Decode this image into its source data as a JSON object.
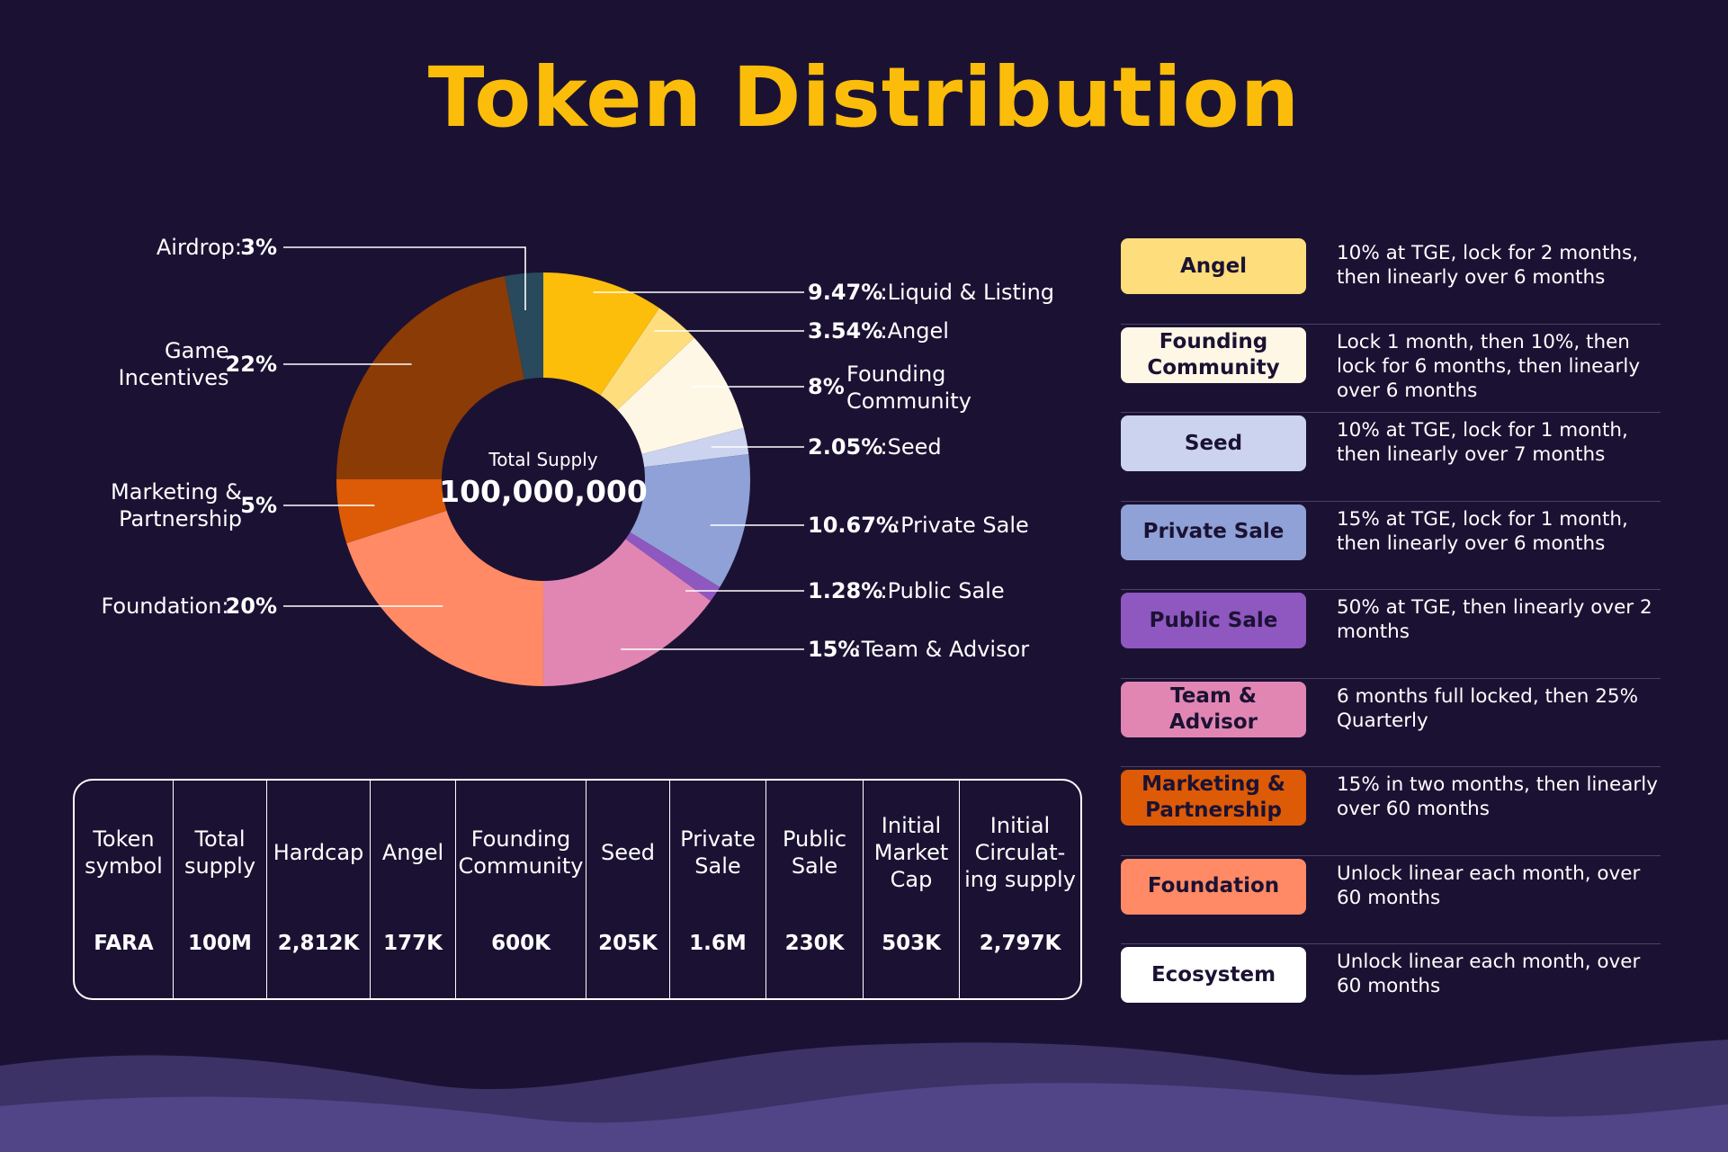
{
  "title": "Token Distribution",
  "colors": {
    "background": "#1b1233",
    "title": "#fbbd09",
    "hills": "#4a3d78"
  },
  "chart_data": {
    "type": "pie",
    "variant": "donut",
    "center_label": "Total Supply",
    "center_value": "100,000,000",
    "slices": [
      {
        "name": "Liquid & Listing",
        "pct": "9.47%",
        "value": 9.47,
        "color": "#fcbd0b",
        "label_side": "right",
        "label_line1": ":Liquid & Listing",
        "label_line2": ""
      },
      {
        "name": "Angel",
        "pct": "3.54%",
        "value": 3.54,
        "color": "#fddd7c",
        "label_side": "right",
        "label_line1": ":Angel",
        "label_line2": ""
      },
      {
        "name": "Founding Community",
        "pct": "8%",
        "value": 8,
        "color": "#fff7e5",
        "label_side": "right",
        "label_line1": "Founding",
        "label_line2": "Community"
      },
      {
        "name": "Seed",
        "pct": "2.05%",
        "value": 2.05,
        "color": "#cbd3ee",
        "label_side": "right",
        "label_line1": ":Seed",
        "label_line2": ""
      },
      {
        "name": "Private Sale",
        "pct": "10.67%",
        "value": 10.67,
        "color": "#8fa1d6",
        "label_side": "right",
        "label_line1": ":Private Sale",
        "label_line2": ""
      },
      {
        "name": "Public Sale",
        "pct": "1.28%",
        "value": 1.28,
        "color": "#8f57c0",
        "label_side": "right",
        "label_line1": ":Public Sale",
        "label_line2": ""
      },
      {
        "name": "Team & Advisor",
        "pct": "15%",
        "value": 15,
        "color": "#e186b3",
        "label_side": "right",
        "label_line1": ":Team & Advisor",
        "label_line2": ""
      },
      {
        "name": "Foundation",
        "pct": "20%",
        "value": 20,
        "color": "#ff8a65",
        "label_side": "left",
        "label_line1": "Foundation:",
        "label_line2": ""
      },
      {
        "name": "Marketing & Partnership",
        "pct": "5%",
        "value": 5,
        "color": "#dd5a07",
        "label_side": "left",
        "label_line1": "Marketing &",
        "label_line2": "Partnership"
      },
      {
        "name": "Game Incentives",
        "pct": "22%",
        "value": 22,
        "color": "#8b3b05",
        "label_side": "left",
        "label_line1": "Game",
        "label_line2": "Incentives"
      },
      {
        "name": "Airdrop",
        "pct": "3%",
        "value": 3,
        "color": "#29495c",
        "label_side": "left",
        "label_line1": "Airdrop:",
        "label_line2": ""
      }
    ]
  },
  "summary_table": {
    "columns": [
      {
        "header": "Token\nsymbol",
        "value": "FARA"
      },
      {
        "header": "Total\nsupply",
        "value": "100M"
      },
      {
        "header": "Hardcap",
        "value": "2,812K"
      },
      {
        "header": "Angel",
        "value": "177K"
      },
      {
        "header": "Founding\nCommunity",
        "value": "600K"
      },
      {
        "header": "Seed",
        "value": "205K"
      },
      {
        "header": "Private\nSale",
        "value": "1.6M"
      },
      {
        "header": "Public\nSale",
        "value": "230K"
      },
      {
        "header": "Initial\nMarket\nCap",
        "value": "503K"
      },
      {
        "header": "Initial\nCirculat-\ning supply",
        "value": "2,797K"
      }
    ]
  },
  "vesting": [
    {
      "label": "Angel",
      "color": "#fddd7c",
      "text_color": "#1b1233",
      "text": "10% at TGE, lock for 2 months, then linearly over 6 months"
    },
    {
      "label": "Founding\nCommunity",
      "color": "#fff7e5",
      "text_color": "#1b1233",
      "text": "Lock 1 month, then 10%, then lock for 6 months, then linearly over 6 months"
    },
    {
      "label": "Seed",
      "color": "#cbd3ee",
      "text_color": "#1b1233",
      "text": "10% at TGE, lock for 1 month, then linearly over 7 months"
    },
    {
      "label": "Private Sale",
      "color": "#8fa1d6",
      "text_color": "#1b1233",
      "text": "15% at TGE, lock for 1 month, then linearly over 6 months"
    },
    {
      "label": "Public Sale",
      "color": "#8f57c0",
      "text_color": "#1b1233",
      "text": "50% at TGE, then linearly over 2 months"
    },
    {
      "label": "Team &\nAdvisor",
      "color": "#e186b3",
      "text_color": "#1b1233",
      "text": "6 months full locked, then 25% Quarterly"
    },
    {
      "label": "Marketing &\nPartnership",
      "color": "#dd5a07",
      "text_color": "#1b1233",
      "text": "15% in two months, then linearly over 60 months"
    },
    {
      "label": "Foundation",
      "color": "#ff8a65",
      "text_color": "#1b1233",
      "text": "Unlock linear each month, over 60 months"
    },
    {
      "label": "Ecosystem",
      "color": "#ffffff",
      "text_color": "#1b1233",
      "text": "Unlock linear each month, over 60 months"
    }
  ]
}
